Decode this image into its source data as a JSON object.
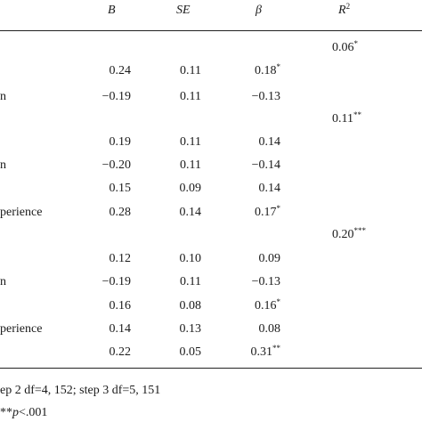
{
  "table": {
    "headers": {
      "B": "B",
      "SE": "SE",
      "beta": "β",
      "R2_base": "R",
      "R2_exp": "2"
    },
    "step_r2": [
      {
        "value": "0.06",
        "sig": "*"
      },
      {
        "value": "0.11",
        "sig": "**"
      },
      {
        "value": "0.20",
        "sig": "***"
      }
    ],
    "rows": [
      {
        "stub": "",
        "B": "0.24",
        "SE": "0.11",
        "beta": "0.18",
        "beta_sig": "*"
      },
      {
        "stub": "n",
        "B": "−0.19",
        "SE": "0.11",
        "beta": "−0.13",
        "beta_sig": ""
      },
      {
        "stub": "",
        "B": "0.19",
        "SE": "0.11",
        "beta": "0.14",
        "beta_sig": ""
      },
      {
        "stub": "n",
        "B": "−0.20",
        "SE": "0.11",
        "beta": "−0.14",
        "beta_sig": ""
      },
      {
        "stub": "",
        "B": "0.15",
        "SE": "0.09",
        "beta": "0.14",
        "beta_sig": ""
      },
      {
        "stub": "perience",
        "B": "0.28",
        "SE": "0.14",
        "beta": "0.17",
        "beta_sig": "*"
      },
      {
        "stub": "",
        "B": "0.12",
        "SE": "0.10",
        "beta": "0.09",
        "beta_sig": ""
      },
      {
        "stub": "n",
        "B": "−0.19",
        "SE": "0.11",
        "beta": "−0.13",
        "beta_sig": ""
      },
      {
        "stub": "",
        "B": "0.16",
        "SE": "0.08",
        "beta": "0.16",
        "beta_sig": "*"
      },
      {
        "stub": "perience",
        "B": "0.14",
        "SE": "0.13",
        "beta": "0.08",
        "beta_sig": ""
      },
      {
        "stub": "",
        "B": "0.22",
        "SE": "0.05",
        "beta": "0.31",
        "beta_sig": "**"
      }
    ],
    "footnote_1": "ep 2 df=4, 152; step 3 df=5, 151",
    "footnote_2_prefix": "**",
    "footnote_2_p": "p",
    "footnote_2_suffix": "<.001"
  }
}
